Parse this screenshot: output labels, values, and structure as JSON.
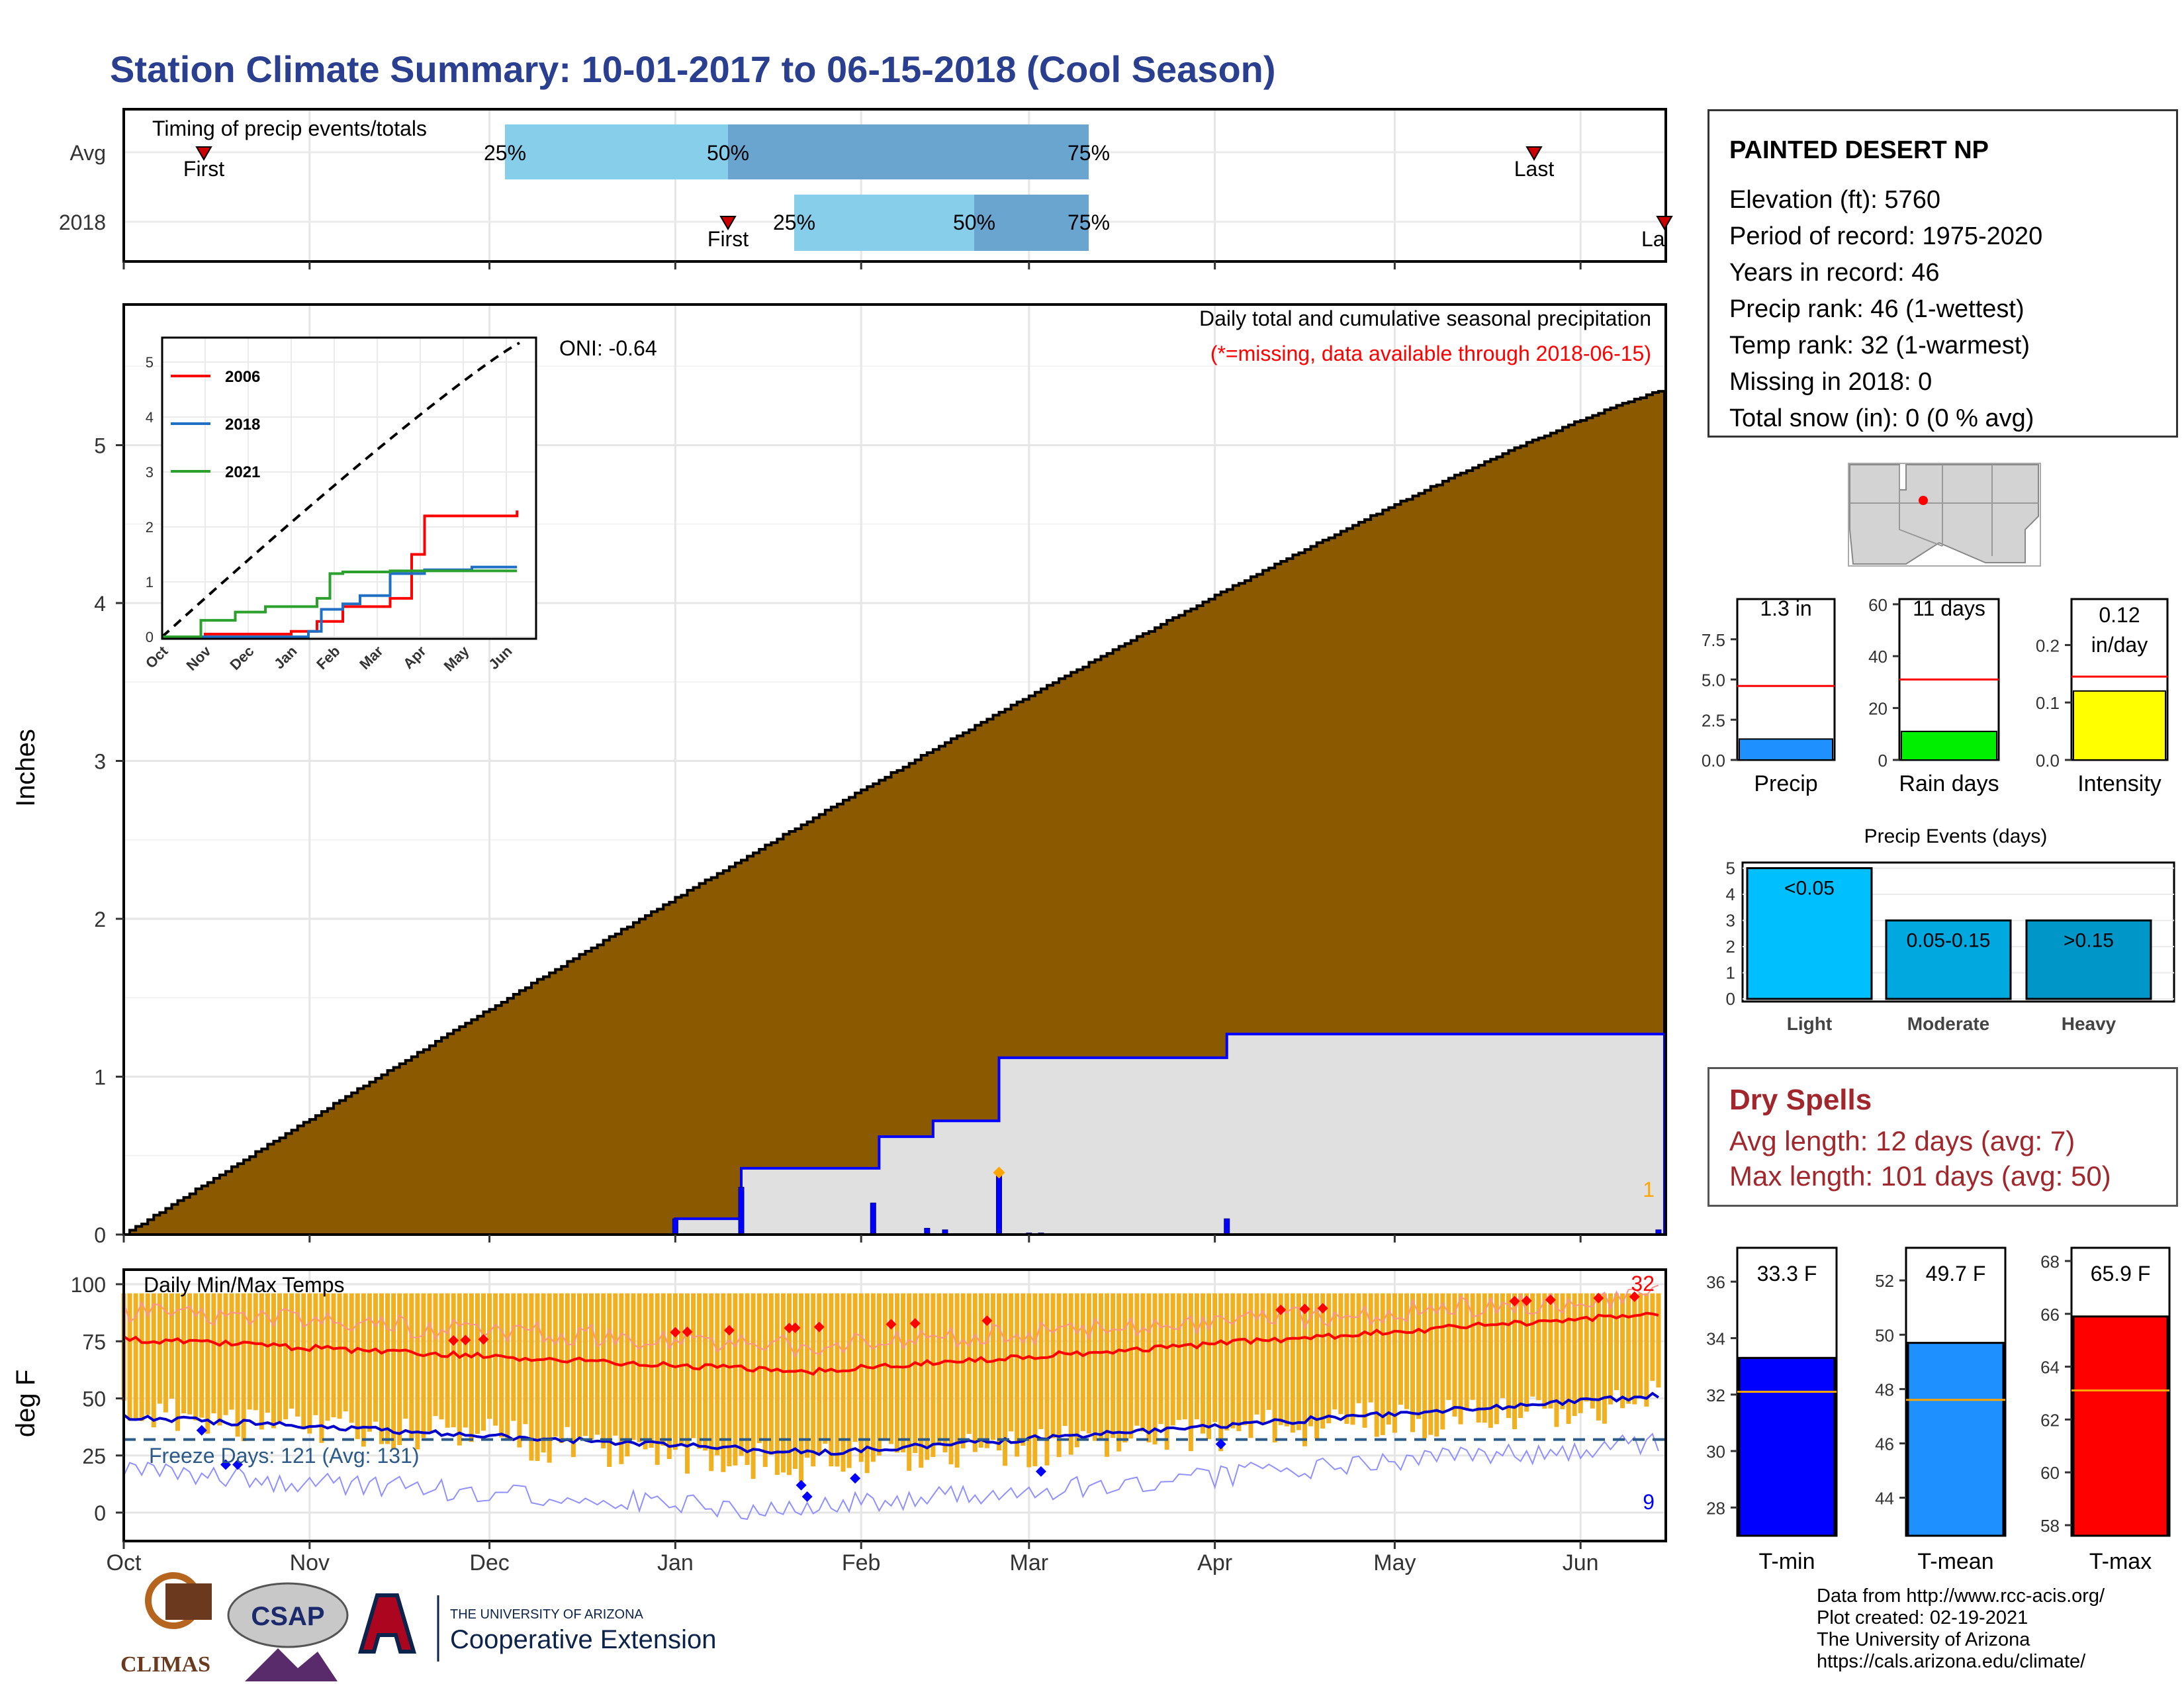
{
  "title": "Station Climate Summary: 10-01-2017 to 06-15-2018 (Cool Season)",
  "colors": {
    "title": "#2a3f8f",
    "brown": "#8b5a00",
    "blue": "#0000ff",
    "lightblue": "#87ceeb",
    "midblue": "#6aa5d0",
    "orange": "#f0b020",
    "red": "#ff0000"
  },
  "timing": {
    "title": "Timing of precip events/totals",
    "rows": [
      {
        "label": "Avg",
        "first": "First",
        "last": "Last",
        "pct": [
          "25%",
          "50%",
          "75%"
        ]
      },
      {
        "label": "2018",
        "first": "First",
        "last": "La",
        "pct": [
          "25%",
          "50%",
          "75%"
        ]
      }
    ]
  },
  "main": {
    "ylabel": "Inches",
    "yticks": [
      "0",
      "1",
      "2",
      "3",
      "4",
      "5"
    ],
    "label1": "Daily total and cumulative seasonal precipitation",
    "label2": "(*=missing, data available through 2018-06-15)",
    "oni": "ONI: -0.64",
    "count": "1",
    "cumulative_avg_end": 5.35,
    "cumulative_2018_end": 1.27
  },
  "inset": {
    "yticks": [
      "0",
      "1",
      "2",
      "3",
      "4",
      "5"
    ],
    "xticks": [
      "Oct",
      "Nov",
      "Dec",
      "Jan",
      "Feb",
      "Mar",
      "Apr",
      "May",
      "Jun"
    ],
    "legend": [
      {
        "name": "2006",
        "color": "#ff0000"
      },
      {
        "name": "2018",
        "color": "#1f6fc5"
      },
      {
        "name": "2021",
        "color": "#2ca02c"
      }
    ]
  },
  "temps": {
    "ylabel": "deg F",
    "title": "Daily Min/Max Temps",
    "yticks": [
      "0",
      "25",
      "50",
      "75",
      "100"
    ],
    "freeze": "Freeze Days: 121 (Avg: 131)",
    "hot_count": "32",
    "cold_count": "9"
  },
  "xaxis": [
    "Oct",
    "Nov",
    "Dec",
    "Jan",
    "Feb",
    "Mar",
    "Apr",
    "May",
    "Jun"
  ],
  "station": {
    "name": "PAINTED DESERT NP",
    "lines": [
      "Elevation (ft): 5760",
      "Period of record: 1975-2020",
      "Years in record: 46",
      "Precip rank: 46 (1-wettest)",
      "Temp rank: 32 (1-warmest)",
      "Missing in 2018: 0",
      "Total snow (in): 0 (0 % avg)"
    ]
  },
  "minibars": [
    {
      "label": "Precip",
      "value_text": "1.3 in",
      "value": 1.3,
      "avg": 4.6,
      "max": 10,
      "yticks": [
        "0.0",
        "2.5",
        "5.0",
        "7.5"
      ],
      "ytick_vals": [
        0,
        2.5,
        5,
        7.5
      ],
      "color": "#1e90ff"
    },
    {
      "label": "Rain days",
      "value_text": "11 days",
      "value": 11,
      "avg": 31,
      "max": 62,
      "yticks": [
        "0",
        "20",
        "40",
        "60"
      ],
      "ytick_vals": [
        0,
        20,
        40,
        60
      ],
      "color": "#00ee00"
    },
    {
      "label": "Intensity",
      "value_text": "0.12 in/day",
      "value_line1": "0.12",
      "value_line2": "in/day",
      "value": 0.12,
      "avg": 0.145,
      "max": 0.28,
      "yticks": [
        "0.0",
        "0.1",
        "0.2"
      ],
      "ytick_vals": [
        0,
        0.1,
        0.2
      ],
      "color": "#ffff00"
    }
  ],
  "events": {
    "title": "Precip Events (days)",
    "yticks": [
      "0",
      "1",
      "2",
      "3",
      "4",
      "5"
    ],
    "bars": [
      {
        "category": "Light",
        "range": "<0.05",
        "value": 5,
        "color": "#00bfff"
      },
      {
        "category": "Moderate",
        "range": "0.05-0.15",
        "value": 3,
        "color": "#00a8e0"
      },
      {
        "category": "Heavy",
        "range": ">0.15",
        "value": 3,
        "color": "#0096c8"
      }
    ]
  },
  "dry_spells": {
    "title": "Dry Spells",
    "avg": "Avg length: 12 days (avg: 7)",
    "max": "Max length: 101 days (avg: 50)"
  },
  "tbars": [
    {
      "label": "T-min",
      "value_text": "33.3 F",
      "value": 33.3,
      "avg": 32.1,
      "ymin": 27,
      "ymax": 37.2,
      "yticks": [
        "28",
        "30",
        "32",
        "34",
        "36"
      ],
      "ytick_vals": [
        28,
        30,
        32,
        34,
        36
      ],
      "color": "#0000ff"
    },
    {
      "label": "T-mean",
      "value_text": "49.7 F",
      "value": 49.7,
      "avg": 47.6,
      "ymin": 42.6,
      "ymax": 53.2,
      "yticks": [
        "44",
        "46",
        "48",
        "50",
        "52"
      ],
      "ytick_vals": [
        44,
        46,
        48,
        50,
        52
      ],
      "color": "#1e90ff"
    },
    {
      "label": "T-max",
      "value_text": "65.9 F",
      "value": 65.9,
      "avg": 63.1,
      "ymin": 57.6,
      "ymax": 68.5,
      "yticks": [
        "58",
        "60",
        "62",
        "64",
        "66",
        "68"
      ],
      "ytick_vals": [
        58,
        60,
        62,
        64,
        66,
        68
      ],
      "color": "#ff0000"
    }
  ],
  "credits": [
    "Data from http://www.rcc-acis.org/",
    "Plot created: 02-19-2021",
    "The University of Arizona",
    "https://cals.arizona.edu/climate/"
  ],
  "logos": {
    "climas": "CLIMAS",
    "csap": "CSAP",
    "ua_small": "THE UNIVERSITY OF ARIZONA",
    "ua_big": "Cooperative Extension"
  }
}
